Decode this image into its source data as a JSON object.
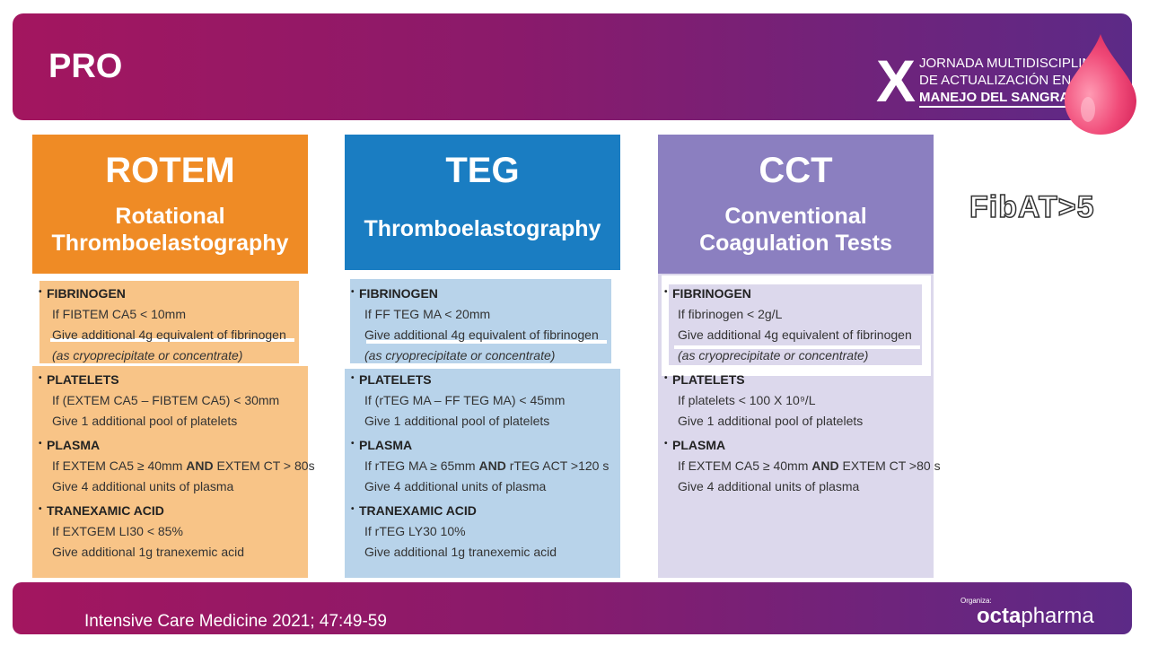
{
  "banner": {
    "title": "PRO"
  },
  "logo": {
    "numeral": "X",
    "line1": "JORNADA MULTIDISCIPLINAR",
    "line2": "DE ACTUALIZACIÓN EN EL",
    "line3": "MANEJO DEL SANGRADO"
  },
  "columns": [
    {
      "abbr": "ROTEM",
      "full_line1": "Rotational",
      "full_line2": "Thromboelastography",
      "head_color": "#ef8b25",
      "body_color": "#f8c487",
      "fibrinogen": {
        "title": "FIBRINOGEN",
        "criterion": "If FIBTEM CA5 < 10mm",
        "action": "Give additional 4g equivalent of fibrinogen",
        "note": "(as cryoprecipitate or concentrate)"
      },
      "platelets": {
        "title": "PLATELETS",
        "criterion": "If (EXTEM CA5 – FIBTEM CA5) < 30mm",
        "action": "Give 1 additional pool of platelets"
      },
      "plasma": {
        "title": "PLASMA",
        "criterion_a": "If EXTEM CA5 ≥ 40mm",
        "and": "AND",
        "criterion_b": "EXTEM CT > 80s",
        "action": "Give 4 additional units of plasma"
      },
      "tranexamic": {
        "title": "TRANEXAMIC ACID",
        "criterion": "If EXTGEM LI30 < 85%",
        "action": "Give additional 1g tranexemic acid"
      }
    },
    {
      "abbr": "TEG",
      "full_line1": "Thromboelastography",
      "full_line2": "",
      "head_color": "#1a7dc2",
      "body_color": "#b8d3ea",
      "fibrinogen": {
        "title": "FIBRINOGEN",
        "criterion": "If FF TEG MA < 20mm",
        "action": "Give additional 4g equivalent of fibrinogen",
        "note": "(as cryoprecipitate or concentrate)"
      },
      "platelets": {
        "title": "PLATELETS",
        "criterion": "If (rTEG MA – FF TEG MA) < 45mm",
        "action": "Give 1 additional pool of platelets"
      },
      "plasma": {
        "title": "PLASMA",
        "criterion_a": "If rTEG MA ≥ 65mm",
        "and": "AND",
        "criterion_b": "rTEG ACT >120 s",
        "action": "Give 4 additional units of plasma"
      },
      "tranexamic": {
        "title": "TRANEXAMIC ACID",
        "criterion": "If rTEG LY30 10%",
        "action": "Give additional 1g tranexemic acid"
      }
    },
    {
      "abbr": "CCT",
      "full_line1": "Conventional",
      "full_line2": "Coagulation Tests",
      "head_color": "#8b7fc0",
      "body_color": "#dcd8ec",
      "fibrinogen": {
        "title": "FIBRINOGEN",
        "criterion": "If fibrinogen < 2g/L",
        "action": "Give additional 4g equivalent of fibrinogen",
        "note": "(as cryoprecipitate or concentrate)"
      },
      "platelets": {
        "title": "PLATELETS",
        "criterion": "If platelets < 100 X 10⁹/L",
        "action": "Give 1 additional pool of platelets"
      },
      "plasma": {
        "title": "PLASMA",
        "criterion_a": "If EXTEM CA5 ≥ 40mm",
        "and": "AND",
        "criterion_b": "EXTEM CT >80 s",
        "action": "Give 4 additional units of plasma"
      }
    }
  ],
  "side_note": "FibAT>5",
  "footer": {
    "citation": "Intensive Care Medicine 2021; 47:49-59",
    "organiza": "Organiza:",
    "brand_a": "octa",
    "brand_b": "pharma"
  }
}
